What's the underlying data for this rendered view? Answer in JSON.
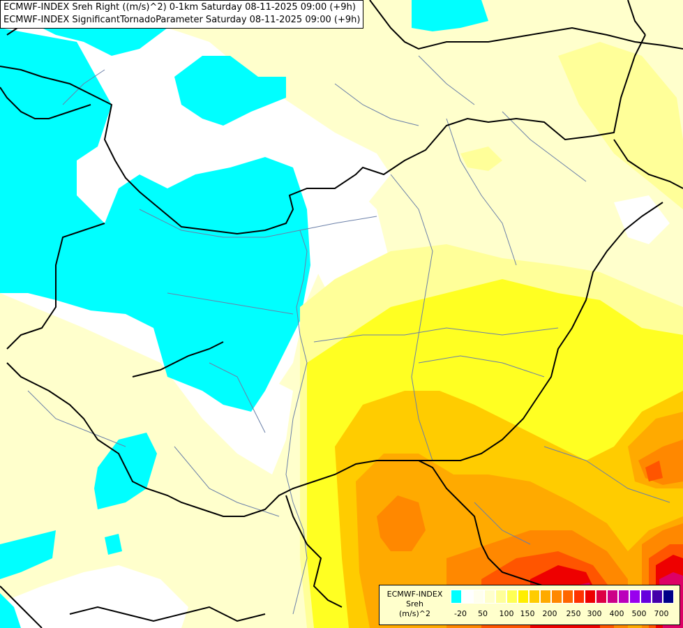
{
  "header": {
    "title_line1": "ECMWF-INDEX Sreh Right ((m/s)^2) 0-1km Saturday 08-11-2025 09:00 (+9h)",
    "title_line2": "ECMWF-INDEX SignificantTornadoParameter Saturday 08-11-2025 09:00 (+9h)"
  },
  "legend": {
    "title_line1": "ECMWF-INDEX",
    "title_line2": "Sreh",
    "title_line3": "(m/s)^2",
    "colors": [
      "#00ffff",
      "#ffffff",
      "#ffffee",
      "#ffffcc",
      "#ffff99",
      "#ffff55",
      "#ffee00",
      "#ffcc00",
      "#ffaa00",
      "#ff8800",
      "#ff6600",
      "#ff3300",
      "#ee0000",
      "#dd0044",
      "#cc0088",
      "#bb00bb",
      "#9900ee",
      "#6600dd",
      "#4400aa",
      "#000088"
    ],
    "ticks": [
      "-20",
      "50",
      "100",
      "150",
      "200",
      "250",
      "300",
      "400",
      "500",
      "700"
    ]
  },
  "palette": {
    "cyan": "#00ffff",
    "white": "#ffffff",
    "pale_yellow": "#ffffcc",
    "light_yellow": "#ffff99",
    "yellow": "#ffff00",
    "gold": "#ffcc00",
    "orange": "#ffaa00",
    "dark_orange": "#ff8800",
    "red_orange": "#ff5500",
    "red": "#ee0000",
    "magenta": "#dd0066",
    "borders": "#000000",
    "rivers": "#6a7fa8"
  }
}
